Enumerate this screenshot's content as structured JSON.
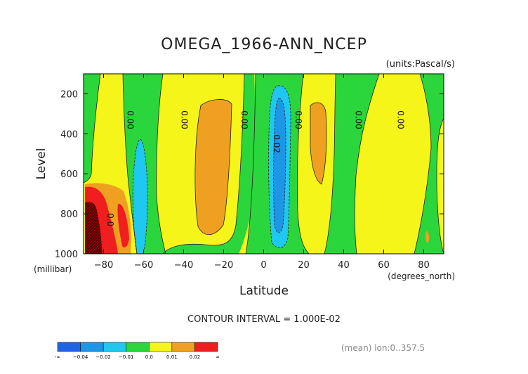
{
  "chart_data": {
    "type": "heatmap",
    "title": "OMEGA_1966-ANN_NCEP",
    "units": "(units:Pascal/s)",
    "xlabel": "Latitude",
    "ylabel": "Level",
    "x_unit": "(degrees_north)",
    "y_unit": "(millibar)",
    "xlim": [
      -90,
      90
    ],
    "ylim": [
      100,
      1000
    ],
    "y_reversed": true,
    "x_ticks": [
      -80,
      -60,
      -40,
      -20,
      0,
      20,
      40,
      60,
      80
    ],
    "x_tick_labels": [
      "−80",
      "−60",
      "−40",
      "−20",
      "0",
      "20",
      "40",
      "60",
      "80"
    ],
    "y_ticks": [
      200,
      400,
      600,
      800,
      1000
    ],
    "y_tick_labels": [
      "200",
      "400",
      "600",
      "800",
      "1000"
    ],
    "contour_interval": "CONTOUR INTERVAL = 1.000E-02",
    "colorbar": {
      "colors": [
        "#1e64e6",
        "#1e96e6",
        "#1ec8f0",
        "#2ad63c",
        "#f5f51a",
        "#f0a020",
        "#f01e1e"
      ],
      "labels": [
        "-∞",
        "−0.04",
        "−0.02",
        "−0.01",
        "0.0",
        "0.01",
        "0.02",
        "∞"
      ]
    },
    "contour_labels": [
      {
        "text": "0.00",
        "lat": -68,
        "lev": 330
      },
      {
        "text": "0.00",
        "lat": -41,
        "lev": 330
      },
      {
        "text": "0.00",
        "lat": -11,
        "lev": 330
      },
      {
        "text": "0.02",
        "lat": 5,
        "lev": 450
      },
      {
        "text": "0.00",
        "lat": 16,
        "lev": 330
      },
      {
        "text": "0.00",
        "lat": 46,
        "lev": 330
      },
      {
        "text": "0.00",
        "lat": 67,
        "lev": 330
      },
      {
        "text": "0.0",
        "lat": -78,
        "lev": 830
      }
    ],
    "note": "(mean) lon:0..357.5"
  }
}
